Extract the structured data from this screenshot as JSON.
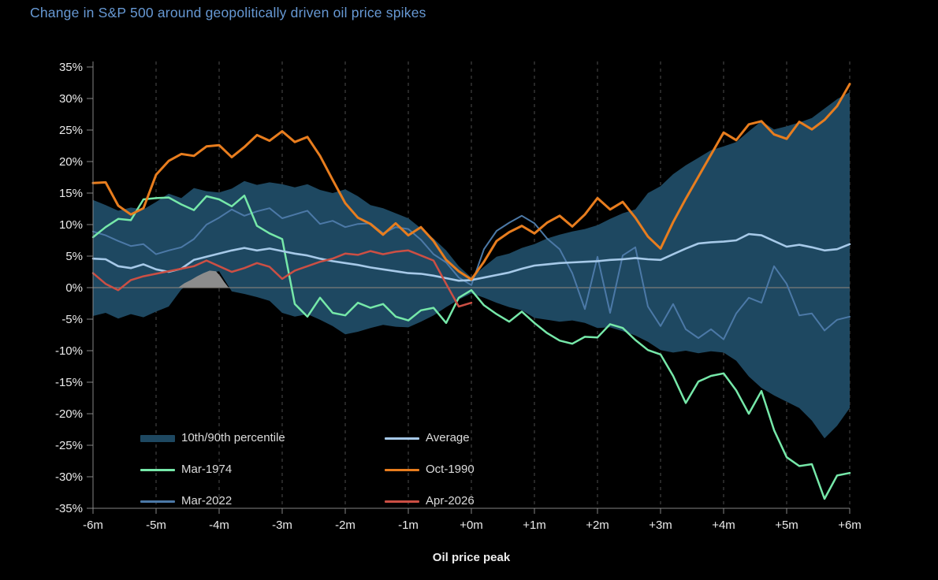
{
  "header": {
    "title": "Change in S&P 500 around geopolitically driven oil price spikes",
    "title_color": "#6799d4"
  },
  "figure": {
    "background": "#000000",
    "plot_background": "#000000"
  },
  "legend": {
    "items": [
      {
        "label": "10th/90th percentile",
        "color": "#1e4861",
        "type": "band"
      },
      {
        "label": "Average",
        "color": "#a6c9e8",
        "type": "line"
      },
      {
        "label": "Mar-1974",
        "color": "#76e8a9",
        "type": "line"
      },
      {
        "label": "Oct-1990",
        "color": "#e87d1e",
        "type": "line"
      },
      {
        "label": "Mar-2022",
        "color": "#4c79a7",
        "type": "line"
      },
      {
        "label": "Apr-2026",
        "color": "#cc4f44",
        "type": "line"
      }
    ]
  },
  "chart_data": {
    "type": "line",
    "title": "Change in S&P 500 around geopolitically driven oil price spikes",
    "xlabel": "Oil price peak",
    "ylabel": "",
    "xlim": [
      -6,
      6
    ],
    "ylim": [
      -35,
      35
    ],
    "grid": "vertical-dashed",
    "zero_line": true,
    "x_tick_values": [
      -6,
      -5,
      -4,
      -3,
      -2,
      -1,
      0,
      1,
      2,
      3,
      4,
      5,
      6
    ],
    "x_ticks": [
      "-6m",
      "-5m",
      "-4m",
      "-3m",
      "-2m",
      "-1m",
      "+0m",
      "+1m",
      "+2m",
      "+3m",
      "+4m",
      "+5m",
      "+6m"
    ],
    "y_tick_values": [
      35,
      30,
      25,
      20,
      15,
      10,
      5,
      0,
      -5,
      -10,
      -15,
      -20,
      -25,
      -30,
      -35
    ],
    "y_ticks": [
      "35%",
      "30%",
      "25%",
      "20%",
      "15%",
      "10%",
      "5%",
      "0%",
      "-5%",
      "-10%",
      "-15%",
      "-20%",
      "-25%",
      "-30%",
      "-35%"
    ],
    "x_start": -6,
    "x_step": 0.2,
    "band": {
      "name": "10th/90th percentile",
      "color": "#1e4861",
      "upper": [
        13.9,
        13.1,
        12.2,
        12.7,
        12.4,
        13.6,
        14.9,
        14.2,
        15.8,
        15.3,
        15.1,
        15.7,
        16.9,
        16.3,
        16.7,
        16.4,
        15.9,
        16.4,
        15.5,
        15.0,
        15.6,
        14.5,
        13.1,
        12.6,
        11.8,
        11.0,
        9.4,
        7.8,
        5.9,
        3.4,
        1.6,
        3.3,
        4.9,
        5.4,
        6.3,
        6.9,
        7.8,
        8.4,
        8.9,
        9.3,
        9.9,
        10.9,
        11.8,
        12.4,
        15.0,
        16.1,
        18.0,
        19.4,
        20.6,
        21.8,
        22.4,
        23.1,
        24.8,
        26.4,
        25.1,
        25.6,
        26.2,
        26.9,
        28.4,
        29.9,
        31.0
      ],
      "lower": [
        -4.5,
        -4.0,
        -4.9,
        -4.2,
        -4.7,
        -3.8,
        -3.0,
        -0.3,
        1.2,
        2.3,
        2.6,
        -0.6,
        -1.0,
        -1.5,
        -2.1,
        -4.0,
        -4.6,
        -4.2,
        -5.1,
        -6.1,
        -7.4,
        -7.0,
        -6.4,
        -5.9,
        -6.2,
        -6.3,
        -5.4,
        -4.4,
        -3.1,
        -1.9,
        -0.9,
        -1.6,
        -2.4,
        -3.1,
        -3.6,
        -4.8,
        -5.1,
        -5.4,
        -5.2,
        -5.6,
        -6.4,
        -6.3,
        -6.9,
        -7.6,
        -8.6,
        -9.9,
        -10.3,
        -10.0,
        -10.4,
        -10.1,
        -10.3,
        -11.6,
        -14.1,
        -15.9,
        -17.1,
        -18.1,
        -19.1,
        -21.1,
        -23.9,
        -21.9,
        -19.1
      ]
    },
    "gray_area": {
      "color": "#8c8c8c",
      "x": [
        -4.65,
        -4.55,
        -4.45,
        -4.35,
        -4.25,
        -4.15,
        -4.05,
        -3.98,
        -3.92,
        -3.85
      ],
      "y": [
        0,
        0.7,
        1.2,
        1.8,
        2.3,
        2.7,
        2.6,
        1.8,
        0.9,
        0
      ]
    },
    "series": [
      {
        "name": "Mar-2022",
        "color": "#4c79a7",
        "width": 2,
        "values": [
          8.9,
          8.3,
          7.4,
          6.6,
          6.9,
          5.3,
          5.9,
          6.4,
          7.7,
          10.0,
          11.1,
          12.4,
          11.4,
          12.1,
          12.6,
          11.0,
          11.6,
          12.2,
          10.1,
          10.6,
          9.6,
          10.1,
          10.2,
          8.6,
          9.6,
          9.3,
          7.6,
          5.3,
          4.0,
          1.6,
          0.4,
          6.1,
          9.0,
          10.3,
          11.4,
          10.2,
          7.8,
          6.1,
          2.3,
          -3.4,
          4.9,
          -4.0,
          5.1,
          6.4,
          -3.0,
          -6.1,
          -2.6,
          -6.6,
          -8.0,
          -6.6,
          -8.2,
          -4.1,
          -1.6,
          -2.4,
          3.4,
          0.6,
          -4.4,
          -4.1,
          -6.8,
          -5.1,
          -4.6
        ]
      },
      {
        "name": "Mar-1974",
        "color": "#76e8a9",
        "width": 2.5,
        "values": [
          8.0,
          9.6,
          10.9,
          10.7,
          14.0,
          14.2,
          14.3,
          13.2,
          12.3,
          14.5,
          14.0,
          12.9,
          14.6,
          9.8,
          8.6,
          7.7,
          -2.6,
          -4.6,
          -1.6,
          -4.0,
          -4.4,
          -2.4,
          -3.2,
          -2.6,
          -4.6,
          -5.2,
          -3.6,
          -3.2,
          -5.6,
          -1.6,
          -0.4,
          -2.8,
          -4.2,
          -5.4,
          -3.8,
          -5.6,
          -7.2,
          -8.4,
          -8.9,
          -7.8,
          -7.9,
          -5.8,
          -6.4,
          -8.3,
          -9.9,
          -10.6,
          -14.0,
          -18.3,
          -14.9,
          -14.0,
          -13.6,
          -16.3,
          -20.0,
          -16.4,
          -22.6,
          -26.9,
          -28.3,
          -28.0,
          -33.5,
          -29.8,
          -29.4
        ]
      },
      {
        "name": "Average",
        "color": "#a6c9e8",
        "width": 2.6,
        "values": [
          4.6,
          4.5,
          3.4,
          3.1,
          3.7,
          2.9,
          2.5,
          3.0,
          4.4,
          4.9,
          5.4,
          5.9,
          6.3,
          5.9,
          6.2,
          5.8,
          5.4,
          5.1,
          4.6,
          4.2,
          3.9,
          3.6,
          3.2,
          2.9,
          2.6,
          2.3,
          2.2,
          1.9,
          1.5,
          1.1,
          1.2,
          1.6,
          2.0,
          2.4,
          3.0,
          3.5,
          3.7,
          3.9,
          4.0,
          4.1,
          4.2,
          4.4,
          4.5,
          4.7,
          4.5,
          4.4,
          5.3,
          6.2,
          7.0,
          7.2,
          7.3,
          7.5,
          8.5,
          8.3,
          7.4,
          6.5,
          6.8,
          6.4,
          5.9,
          6.1,
          6.9
        ]
      },
      {
        "name": "Apr-2026",
        "color": "#cc4f44",
        "width": 2.5,
        "values": [
          2.3,
          0.6,
          -0.4,
          1.2,
          1.8,
          2.2,
          2.6,
          3.0,
          3.4,
          4.3,
          3.4,
          2.5,
          3.1,
          3.9,
          3.3,
          1.4,
          2.7,
          3.4,
          4.1,
          4.6,
          5.4,
          5.2,
          5.8,
          5.3,
          5.7,
          5.9,
          5.1,
          4.3,
          0.6,
          -3.0,
          -2.4
        ]
      },
      {
        "name": "Oct-1990",
        "color": "#e87d1e",
        "width": 3,
        "values": [
          16.6,
          16.7,
          13.0,
          11.6,
          12.6,
          17.9,
          20.1,
          21.2,
          20.9,
          22.4,
          22.6,
          20.7,
          22.3,
          24.2,
          23.3,
          24.8,
          23.1,
          23.9,
          20.9,
          17.1,
          13.4,
          11.1,
          10.1,
          8.4,
          10.2,
          8.3,
          9.6,
          7.4,
          4.4,
          2.6,
          1.3,
          4.1,
          7.4,
          8.8,
          9.8,
          8.6,
          10.3,
          11.4,
          9.7,
          11.6,
          14.2,
          12.4,
          13.6,
          11.1,
          8.1,
          6.2,
          10.4,
          14.1,
          17.6,
          21.1,
          24.6,
          23.4,
          25.9,
          26.4,
          24.3,
          23.6,
          26.3,
          25.1,
          26.6,
          28.8,
          32.3
        ]
      }
    ]
  }
}
